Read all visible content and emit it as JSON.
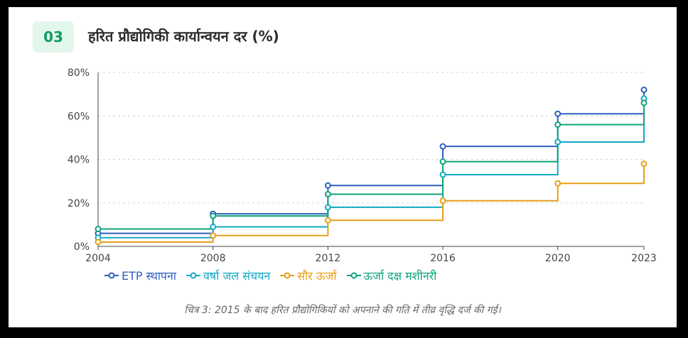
{
  "header": {
    "number": "03",
    "title": "हरित प्रौद्योगिकी कार्यान्वयन दर (%)"
  },
  "caption": "चित्र 3: 2015 के बाद हरित प्रौद्योगिकियों को अपनाने की गति में तीव्र वृद्धि दर्ज की गई।",
  "chart_data": {
    "type": "line",
    "step": "after",
    "x": [
      2004,
      2008,
      2012,
      2016,
      2020,
      2023
    ],
    "xticks": [
      "2004",
      "2008",
      "2012",
      "2016",
      "2020",
      "2023"
    ],
    "ylim": [
      0,
      80
    ],
    "yticks": [
      "0%",
      "20%",
      "40%",
      "60%",
      "80%"
    ],
    "ytick_values": [
      0,
      20,
      40,
      60,
      80
    ],
    "grid": "horizontal-dashed",
    "legend_position": "bottom",
    "series": [
      {
        "name": "ETP स्थापना",
        "color": "#2f5fbf",
        "values": [
          6,
          15,
          28,
          46,
          61,
          72
        ]
      },
      {
        "name": "वर्षा जल संचयन",
        "color": "#12a8c4",
        "values": [
          4,
          9,
          18,
          33,
          48,
          68
        ]
      },
      {
        "name": "सौर ऊर्जा",
        "color": "#e5a018",
        "values": [
          2,
          5,
          12,
          21,
          29,
          38
        ]
      },
      {
        "name": "ऊर्जा दक्ष मशीनरी",
        "color": "#0fa37a",
        "values": [
          8,
          14,
          24,
          39,
          56,
          66
        ]
      }
    ]
  }
}
